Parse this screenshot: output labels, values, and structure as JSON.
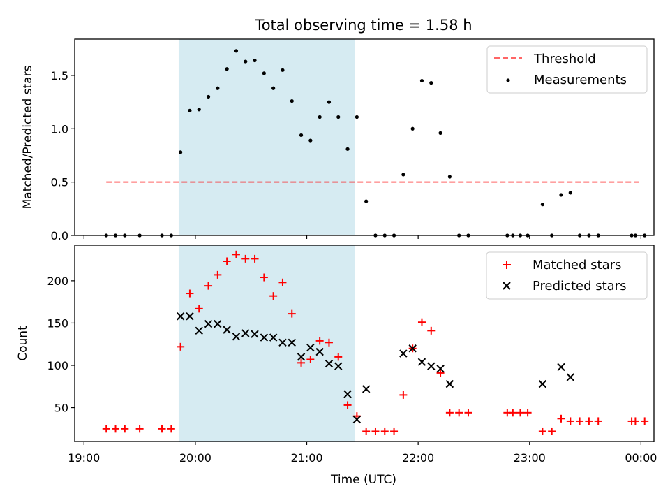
{
  "figure": {
    "title": "Total observing time = 1.58 h"
  },
  "colors": {
    "highlight": "#add8e6",
    "threshold": "#ff0000",
    "measurements": "#000000",
    "matched": "#ff0000",
    "predicted": "#000000"
  },
  "chart_data": [
    {
      "type": "scatter",
      "ylabel": "Matched/Predicted stars",
      "xlabel": "",
      "xlim": [
        "19:00",
        "00:00"
      ],
      "ylim": [
        0,
        1.8
      ],
      "yticks": [
        "0.0",
        "0.5",
        "1.0",
        "1.5"
      ],
      "highlight_span": [
        "19:51",
        "21:26"
      ],
      "legend": {
        "placement": "upper right",
        "threshold_label": "Threshold",
        "measurements_label": "Measurements"
      },
      "threshold": {
        "name": "Threshold",
        "y": 0.5,
        "x": [
          "19:12",
          "23:59"
        ]
      },
      "series": [
        {
          "name": "Measurements",
          "x": [
            "19:12",
            "19:17",
            "19:22",
            "19:30",
            "19:42",
            "19:47",
            "19:52",
            "19:57",
            "20:02",
            "20:07",
            "20:12",
            "20:17",
            "20:22",
            "20:27",
            "20:32",
            "20:37",
            "20:42",
            "20:47",
            "20:52",
            "20:57",
            "21:02",
            "21:07",
            "21:12",
            "21:17",
            "21:22",
            "21:27",
            "21:32",
            "21:37",
            "21:42",
            "21:47",
            "21:52",
            "21:57",
            "22:02",
            "22:07",
            "22:12",
            "22:17",
            "22:22",
            "22:27",
            "22:48",
            "22:51",
            "22:55",
            "22:59",
            "23:07",
            "23:12",
            "23:17",
            "23:22",
            "23:27",
            "23:32",
            "23:37",
            "23:55",
            "23:57",
            "00:02"
          ],
          "y": [
            0,
            0,
            0,
            0,
            0,
            0,
            0.78,
            1.17,
            1.18,
            1.3,
            1.38,
            1.56,
            1.73,
            1.63,
            1.64,
            1.52,
            1.38,
            1.55,
            1.26,
            0.94,
            0.89,
            1.11,
            1.25,
            1.11,
            0.81,
            1.11,
            0.32,
            0,
            0,
            0,
            0.57,
            1.0,
            1.45,
            1.43,
            0.96,
            0.55,
            0,
            0,
            0,
            0,
            0,
            0,
            0.29,
            0,
            0.38,
            0.4,
            0,
            0,
            0,
            0,
            0,
            0
          ]
        }
      ]
    },
    {
      "type": "scatter",
      "ylabel": "Count",
      "xlabel": "Time (UTC)",
      "xlim": [
        "19:00",
        "00:00"
      ],
      "ylim": [
        10,
        240
      ],
      "xticks": [
        "19:00",
        "20:00",
        "21:00",
        "22:00",
        "23:00",
        "00:00"
      ],
      "yticks": [
        "50",
        "100",
        "150",
        "200"
      ],
      "highlight_span": [
        "19:51",
        "21:26"
      ],
      "legend": {
        "placement": "upper right",
        "matched_label": "Matched stars",
        "predicted_label": "Predicted stars"
      },
      "series": [
        {
          "name": "Matched stars",
          "x": [
            "19:12",
            "19:17",
            "19:22",
            "19:30",
            "19:42",
            "19:47",
            "19:52",
            "19:57",
            "20:02",
            "20:07",
            "20:12",
            "20:17",
            "20:22",
            "20:27",
            "20:32",
            "20:37",
            "20:42",
            "20:47",
            "20:52",
            "20:57",
            "21:02",
            "21:07",
            "21:12",
            "21:17",
            "21:22",
            "21:27",
            "21:32",
            "21:37",
            "21:42",
            "21:47",
            "21:52",
            "21:57",
            "22:02",
            "22:07",
            "22:12",
            "22:17",
            "22:22",
            "22:27",
            "22:48",
            "22:51",
            "22:55",
            "22:59",
            "23:07",
            "23:12",
            "23:17",
            "23:22",
            "23:27",
            "23:32",
            "23:37",
            "23:55",
            "23:57",
            "00:02"
          ],
          "y": [
            25,
            25,
            25,
            25,
            25,
            25,
            122,
            185,
            167,
            194,
            207,
            223,
            231,
            226,
            226,
            204,
            182,
            198,
            161,
            103,
            107,
            129,
            127,
            110,
            53,
            40,
            22,
            22,
            22,
            22,
            65,
            120,
            151,
            141,
            91,
            44,
            44,
            44,
            44,
            44,
            44,
            44,
            22,
            22,
            37,
            34,
            34,
            34,
            34,
            34,
            34,
            34
          ]
        },
        {
          "name": "Predicted stars",
          "x": [
            "19:52",
            "19:57",
            "20:02",
            "20:07",
            "20:12",
            "20:17",
            "20:22",
            "20:27",
            "20:32",
            "20:37",
            "20:42",
            "20:47",
            "20:52",
            "20:57",
            "21:02",
            "21:07",
            "21:12",
            "21:17",
            "21:22",
            "21:27",
            "21:32",
            "21:52",
            "21:57",
            "22:02",
            "22:07",
            "22:12",
            "22:17",
            "23:07",
            "23:17",
            "23:22"
          ],
          "y": [
            158,
            158,
            141,
            149,
            149,
            142,
            134,
            138,
            137,
            133,
            133,
            127,
            127,
            110,
            121,
            116,
            102,
            99,
            66,
            36,
            72,
            114,
            120,
            104,
            99,
            96,
            78,
            78,
            98,
            86
          ]
        }
      ]
    }
  ]
}
